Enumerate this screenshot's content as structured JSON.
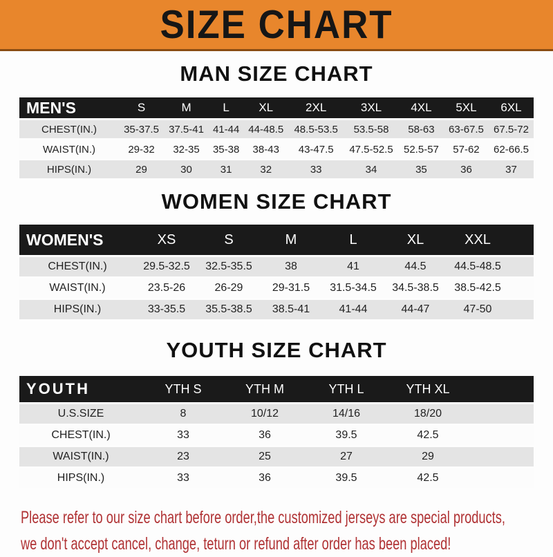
{
  "banner": {
    "title": "SIZE CHART",
    "bg_color": "#E8862C",
    "border_color": "#8A4C12"
  },
  "sections": [
    {
      "heading": "MAN SIZE CHART",
      "table": {
        "header": [
          "MEN'S",
          "S",
          "M",
          "L",
          "XL",
          "2XL",
          "3XL",
          "4XL",
          "5XL",
          "6XL"
        ],
        "rows": [
          [
            "CHEST(IN.)",
            "35-37.5",
            "37.5-41",
            "41-44",
            "44-48.5",
            "48.5-53.5",
            "53.5-58",
            "58-63",
            "63-67.5",
            "67.5-72"
          ],
          [
            "WAIST(IN.)",
            "29-32",
            "32-35",
            "35-38",
            "38-43",
            "43-47.5",
            "47.5-52.5",
            "52.5-57",
            "57-62",
            "62-66.5"
          ],
          [
            "HIPS(IN.)",
            "29",
            "30",
            "31",
            "32",
            "33",
            "34",
            "35",
            "36",
            "37"
          ]
        ]
      }
    },
    {
      "heading": "WOMEN SIZE CHART",
      "table": {
        "header": [
          "WOMEN'S",
          "XS",
          "S",
          "M",
          "L",
          "XL",
          "XXL"
        ],
        "rows": [
          [
            "CHEST(IN.)",
            "29.5-32.5",
            "32.5-35.5",
            "38",
            "41",
            "44.5",
            "44.5-48.5"
          ],
          [
            "WAIST(IN.)",
            "23.5-26",
            "26-29",
            "29-31.5",
            "31.5-34.5",
            "34.5-38.5",
            "38.5-42.5"
          ],
          [
            "HIPS(IN.)",
            "33-35.5",
            "35.5-38.5",
            "38.5-41",
            "41-44",
            "44-47",
            "47-50"
          ]
        ]
      }
    },
    {
      "heading": "YOUTH SIZE CHART",
      "table": {
        "header": [
          "YOUTH",
          "YTH S",
          "YTH M",
          "YTH L",
          "YTH XL"
        ],
        "rows": [
          [
            "U.S.SIZE",
            "8",
            "10/12",
            "14/16",
            "18/20"
          ],
          [
            "CHEST(IN.)",
            "33",
            "36",
            "39.5",
            "42.5"
          ],
          [
            "WAIST(IN.)",
            "23",
            "25",
            "27",
            "29"
          ],
          [
            "HIPS(IN.)",
            "33",
            "36",
            "39.5",
            "42.5"
          ]
        ]
      }
    }
  ],
  "footer": {
    "lines": [
      "Please refer to our size chart before order,the customized jerseys are special products,",
      "we don't accept cancel, change, teturn or refund after order has been placed!"
    ],
    "text_color": "#B03234"
  },
  "colors": {
    "header_bar": "#1A1A1A",
    "row_gray": "#E4E4E4",
    "row_white": "#FCFCFC"
  }
}
